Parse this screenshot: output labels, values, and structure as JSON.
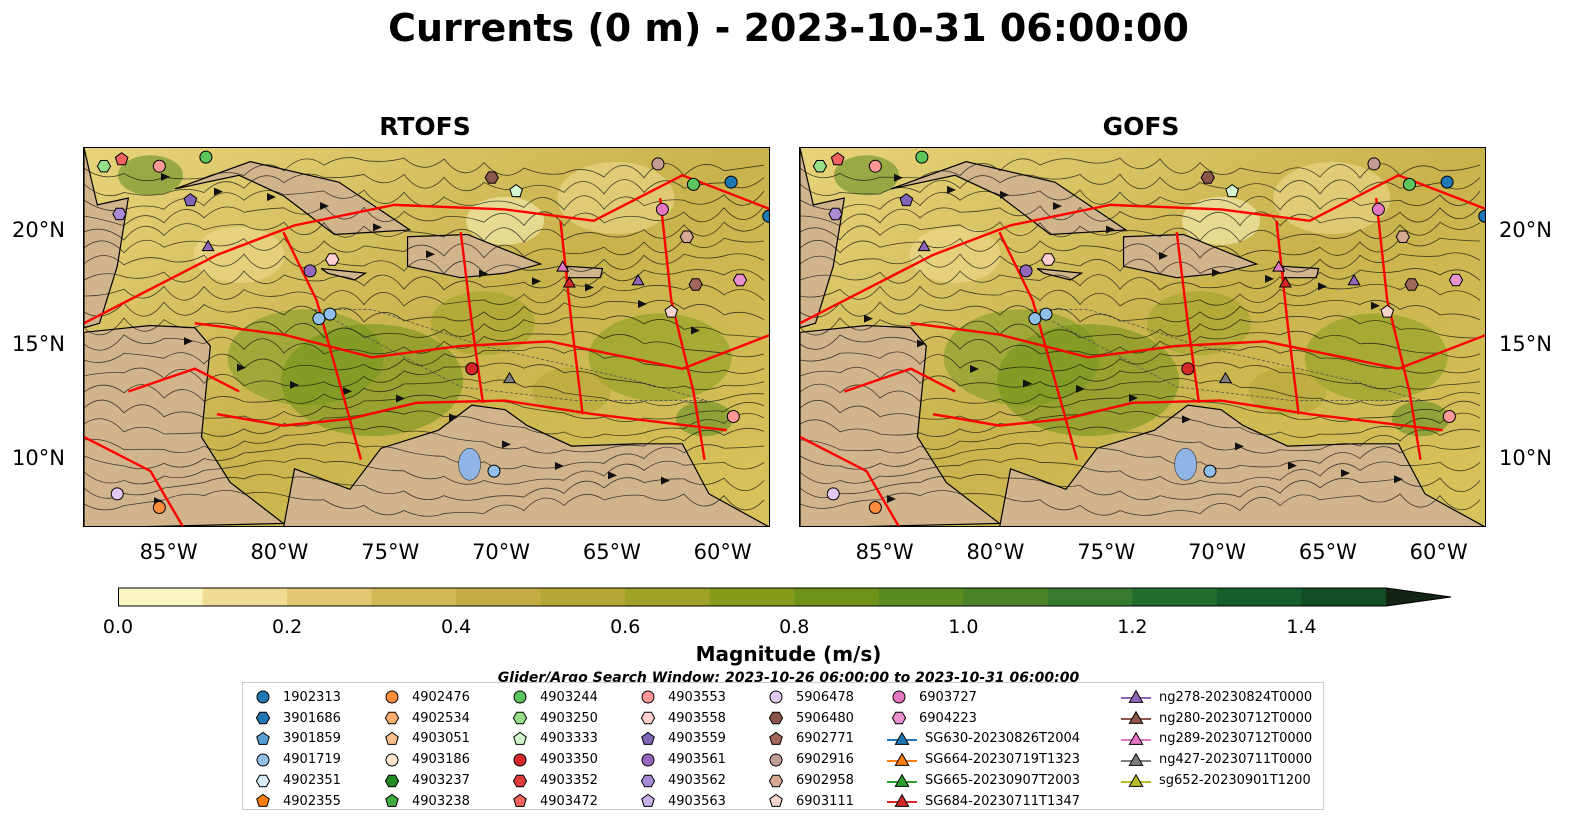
{
  "title": "Currents (0 m) - 2023-10-31 06:00:00",
  "panels": [
    {
      "title": "RTOFS"
    },
    {
      "title": "GOFS"
    }
  ],
  "axes": {
    "lon_labels": [
      "85°W",
      "80°W",
      "75°W",
      "70°W",
      "65°W",
      "60°W"
    ],
    "lat_labels": [
      "20°N",
      "15°N",
      "10°N"
    ],
    "lon_values": [
      -85,
      -80,
      -75,
      -70,
      -65,
      -60
    ],
    "lat_values": [
      20,
      15,
      10
    ],
    "lon_range": [
      -89,
      -58
    ],
    "lat_range": [
      7,
      23.7
    ]
  },
  "colorbar": {
    "label": "Magnitude (m/s)",
    "ticks": [
      "0.0",
      "0.2",
      "0.4",
      "0.6",
      "0.8",
      "1.0",
      "1.2",
      "1.4"
    ],
    "tick_values": [
      0.0,
      0.2,
      0.4,
      0.6,
      0.8,
      1.0,
      1.2,
      1.4
    ],
    "range": [
      0.0,
      1.5
    ],
    "colors": [
      "#fbf6c1",
      "#f1dc93",
      "#e1c871",
      "#d2b955",
      "#c4ad43",
      "#b3a635",
      "#9fa128",
      "#879c1d",
      "#6f9218",
      "#5b8a1f",
      "#4a8228",
      "#357a2e",
      "#246d2f",
      "#175e2d",
      "#134d26",
      "#123d20",
      "#14301a",
      "#142414"
    ]
  },
  "search_window": "Glider/Argo Search Window: 2023-10-26 06:00:00 to 2023-10-31 06:00:00",
  "legend": [
    [
      {
        "label": "1902313",
        "marker": "circle",
        "color": "#1f77b4"
      },
      {
        "label": "3901686",
        "marker": "hexagon",
        "color": "#1f77b4"
      },
      {
        "label": "3901859",
        "marker": "pentagon",
        "color": "#5a9fd4"
      },
      {
        "label": "4901719",
        "marker": "circle",
        "color": "#90c0ea"
      },
      {
        "label": "4902351",
        "marker": "hexagon",
        "color": "#d6eaf8"
      },
      {
        "label": "4902355",
        "marker": "pentagon",
        "color": "#ff7f0e"
      }
    ],
    [
      {
        "label": "4902476",
        "marker": "circle",
        "color": "#fd8d3c"
      },
      {
        "label": "4902534",
        "marker": "hexagon",
        "color": "#fdae6b"
      },
      {
        "label": "4903051",
        "marker": "pentagon",
        "color": "#fdc08f"
      },
      {
        "label": "4903186",
        "marker": "circle",
        "color": "#fee6ce"
      },
      {
        "label": "4903237",
        "marker": "hexagon",
        "color": "#238b23"
      },
      {
        "label": "4903238",
        "marker": "pentagon",
        "color": "#41ab41"
      }
    ],
    [
      {
        "label": "4903244",
        "marker": "circle",
        "color": "#5cc55c"
      },
      {
        "label": "4903250",
        "marker": "hexagon",
        "color": "#98df8a"
      },
      {
        "label": "4903333",
        "marker": "pentagon",
        "color": "#d4f7d0"
      },
      {
        "label": "4903350",
        "marker": "circle",
        "color": "#d62728"
      },
      {
        "label": "4903352",
        "marker": "hexagon",
        "color": "#e03c3c"
      },
      {
        "label": "4903472",
        "marker": "pentagon",
        "color": "#f2625e"
      }
    ],
    [
      {
        "label": "4903553",
        "marker": "circle",
        "color": "#ff9896"
      },
      {
        "label": "4903558",
        "marker": "hexagon",
        "color": "#ffd0cf"
      },
      {
        "label": "4903559",
        "marker": "pentagon",
        "color": "#8064b8"
      },
      {
        "label": "4903561",
        "marker": "circle",
        "color": "#9467bd"
      },
      {
        "label": "4903562",
        "marker": "hexagon",
        "color": "#a98bd6"
      },
      {
        "label": "4903563",
        "marker": "pentagon",
        "color": "#c5b0e8"
      }
    ],
    [
      {
        "label": "5906478",
        "marker": "circle",
        "color": "#e5c9f5"
      },
      {
        "label": "5906480",
        "marker": "hexagon",
        "color": "#8c564b"
      },
      {
        "label": "6902771",
        "marker": "pentagon",
        "color": "#a0665a"
      },
      {
        "label": "6902916",
        "marker": "circle",
        "color": "#c49c94"
      },
      {
        "label": "6902958",
        "marker": "hexagon",
        "color": "#d7a994"
      },
      {
        "label": "6903111",
        "marker": "pentagon",
        "color": "#f6d4cc"
      }
    ],
    [
      {
        "label": "6903727",
        "marker": "circle",
        "color": "#e377c2"
      },
      {
        "label": "6904223",
        "marker": "hexagon",
        "color": "#e990cf"
      },
      {
        "label": "SG630-20230826T2004",
        "marker": "triangle-line",
        "color": "#1f77b4"
      },
      {
        "label": "SG664-20230719T1323",
        "marker": "triangle-line",
        "color": "#ff7f0e"
      },
      {
        "label": "SG665-20230907T2003",
        "marker": "triangle-line",
        "color": "#2ca02c"
      },
      {
        "label": "SG684-20230711T1347",
        "marker": "triangle-line",
        "color": "#d62728"
      }
    ],
    [
      {
        "label": "ng278-20230824T0000",
        "marker": "triangle-line",
        "color": "#9467bd"
      },
      {
        "label": "ng280-20230712T0000",
        "marker": "triangle-line",
        "color": "#8c564b"
      },
      {
        "label": "ng289-20230712T0000",
        "marker": "triangle-line",
        "color": "#e377c2"
      },
      {
        "label": "ng427-20230711T0000",
        "marker": "triangle-line",
        "color": "#7f7f7f"
      },
      {
        "label": "sg652-20230901T1200",
        "marker": "triangle-line",
        "color": "#bcbd22"
      }
    ]
  ],
  "markers": [
    {
      "lon": -88.1,
      "lat": 22.9,
      "shape": "hexagon",
      "color": "#98df8a"
    },
    {
      "lon": -87.3,
      "lat": 23.2,
      "shape": "pentagon",
      "color": "#f2625e"
    },
    {
      "lon": -85.6,
      "lat": 22.9,
      "shape": "circle",
      "color": "#ff9896"
    },
    {
      "lon": -83.5,
      "lat": 23.3,
      "shape": "circle",
      "color": "#5cc55c"
    },
    {
      "lon": -84.2,
      "lat": 21.4,
      "shape": "pentagon",
      "color": "#8064b8"
    },
    {
      "lon": -87.4,
      "lat": 20.8,
      "shape": "hexagon",
      "color": "#a98bd6"
    },
    {
      "lon": -83.4,
      "lat": 19.4,
      "shape": "triangle",
      "color": "#9467bd"
    },
    {
      "lon": -78.8,
      "lat": 18.3,
      "shape": "circle",
      "color": "#9467bd"
    },
    {
      "lon": -77.8,
      "lat": 18.8,
      "shape": "hexagon",
      "color": "#ffd0cf"
    },
    {
      "lon": -78.4,
      "lat": 16.2,
      "shape": "circle",
      "color": "#90c0ea"
    },
    {
      "lon": -77.9,
      "lat": 16.4,
      "shape": "circle",
      "color": "#90c0ea"
    },
    {
      "lon": -71.5,
      "lat": 14.0,
      "shape": "circle",
      "color": "#d62728"
    },
    {
      "lon": -69.8,
      "lat": 13.6,
      "shape": "triangle",
      "color": "#7f7f7f"
    },
    {
      "lon": -69.5,
      "lat": 21.8,
      "shape": "pentagon",
      "color": "#d4f7d0"
    },
    {
      "lon": -70.6,
      "lat": 22.4,
      "shape": "hexagon",
      "color": "#8c564b"
    },
    {
      "lon": -67.4,
      "lat": 18.5,
      "shape": "triangle",
      "color": "#e377c2"
    },
    {
      "lon": -67.1,
      "lat": 17.8,
      "shape": "triangle",
      "color": "#d62728"
    },
    {
      "lon": -64.0,
      "lat": 17.9,
      "shape": "triangle",
      "color": "#9467bd"
    },
    {
      "lon": -63.1,
      "lat": 23.0,
      "shape": "circle",
      "color": "#c49c94"
    },
    {
      "lon": -61.5,
      "lat": 22.1,
      "shape": "circle",
      "color": "#5cc55c"
    },
    {
      "lon": -59.8,
      "lat": 22.2,
      "shape": "circle",
      "color": "#1f77b4"
    },
    {
      "lon": -58.1,
      "lat": 20.7,
      "shape": "circle",
      "color": "#1f77b4"
    },
    {
      "lon": -62.9,
      "lat": 21.0,
      "shape": "circle",
      "color": "#e377c2"
    },
    {
      "lon": -61.8,
      "lat": 19.8,
      "shape": "hexagon",
      "color": "#d7a994"
    },
    {
      "lon": -61.4,
      "lat": 17.7,
      "shape": "hexagon",
      "color": "#a0665a"
    },
    {
      "lon": -59.4,
      "lat": 17.9,
      "shape": "hexagon",
      "color": "#e990cf"
    },
    {
      "lon": -62.5,
      "lat": 16.5,
      "shape": "pentagon",
      "color": "#f6d4cc"
    },
    {
      "lon": -59.7,
      "lat": 11.9,
      "shape": "circle",
      "color": "#ff9896"
    },
    {
      "lon": -70.5,
      "lat": 9.5,
      "shape": "circle",
      "color": "#90c0ea"
    },
    {
      "lon": -87.5,
      "lat": 8.5,
      "shape": "circle",
      "color": "#e5c9f5"
    },
    {
      "lon": -85.6,
      "lat": 7.9,
      "shape": "circle",
      "color": "#fd8d3c"
    }
  ]
}
